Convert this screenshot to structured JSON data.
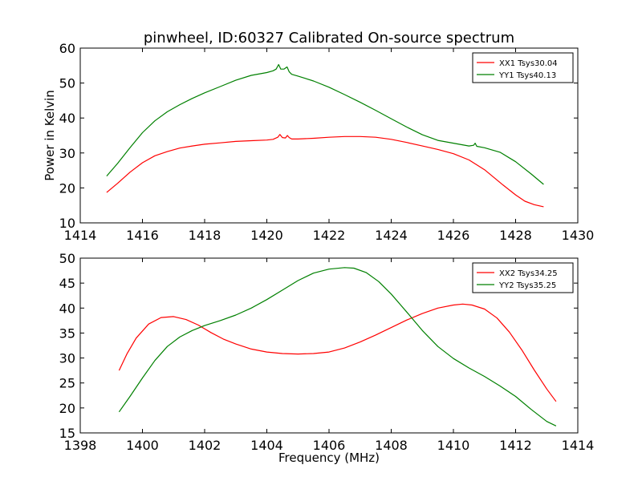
{
  "title": "pinwheel, ID:60327 Calibrated On-source spectrum",
  "colors": {
    "red": "#ff0000",
    "green": "#008000",
    "axes": "#000000",
    "background": "#ffffff"
  },
  "chart_data": [
    {
      "type": "line",
      "title": "pinwheel, ID:60327 Calibrated On-source spectrum",
      "xlabel": "",
      "ylabel": "Power in Kelvin",
      "xlim": [
        1414,
        1430
      ],
      "ylim": [
        10,
        60
      ],
      "xticks": [
        1414,
        1416,
        1418,
        1420,
        1422,
        1424,
        1426,
        1428,
        1430
      ],
      "yticks": [
        10,
        20,
        30,
        40,
        50,
        60
      ],
      "xtick_labels": [
        "1414",
        "1416",
        "1418",
        "1420",
        "1422",
        "1424",
        "1426",
        "1428",
        "1430"
      ],
      "ytick_labels": [
        "10",
        "20",
        "30",
        "40",
        "50",
        "60"
      ],
      "grid": false,
      "legend_position": "top-right",
      "series": [
        {
          "name": "XX1 Tsys30.04",
          "color": "#ff0000",
          "x": [
            1414.85,
            1415.2,
            1415.6,
            1416.0,
            1416.4,
            1416.8,
            1417.2,
            1417.6,
            1418.0,
            1418.5,
            1419.0,
            1419.5,
            1420.0,
            1420.2,
            1420.35,
            1420.42,
            1420.5,
            1420.6,
            1420.66,
            1420.72,
            1420.8,
            1421.0,
            1421.5,
            1422.0,
            1422.5,
            1423.0,
            1423.5,
            1424.0,
            1424.5,
            1425.0,
            1425.5,
            1426.0,
            1426.5,
            1427.0,
            1427.3,
            1427.6,
            1428.0,
            1428.3,
            1428.6,
            1428.9
          ],
          "y": [
            18.7,
            21.3,
            24.5,
            27.2,
            29.2,
            30.4,
            31.4,
            32.0,
            32.5,
            32.9,
            33.3,
            33.5,
            33.7,
            33.9,
            34.5,
            35.3,
            34.4,
            34.3,
            35.0,
            34.4,
            34.0,
            34.0,
            34.2,
            34.5,
            34.7,
            34.7,
            34.5,
            33.9,
            33.0,
            32.0,
            31.0,
            29.8,
            28.0,
            25.2,
            23.0,
            20.8,
            18.0,
            16.2,
            15.2,
            14.6
          ]
        },
        {
          "name": "YY1 Tsys40.13",
          "color": "#008000",
          "x": [
            1414.85,
            1415.2,
            1415.6,
            1416.0,
            1416.4,
            1416.8,
            1417.2,
            1417.6,
            1418.0,
            1418.5,
            1419.0,
            1419.5,
            1420.0,
            1420.2,
            1420.3,
            1420.38,
            1420.45,
            1420.55,
            1420.65,
            1420.72,
            1420.8,
            1421.0,
            1421.5,
            1422.0,
            1422.5,
            1423.0,
            1423.5,
            1424.0,
            1424.5,
            1425.0,
            1425.5,
            1426.0,
            1426.5,
            1426.65,
            1426.7,
            1426.75,
            1427.0,
            1427.5,
            1428.0,
            1428.5,
            1428.9
          ],
          "y": [
            23.4,
            27.0,
            31.5,
            35.8,
            39.2,
            41.8,
            43.8,
            45.6,
            47.2,
            49.0,
            50.8,
            52.2,
            53.0,
            53.5,
            54.0,
            55.3,
            54.0,
            54.0,
            54.6,
            53.2,
            52.5,
            52.0,
            50.6,
            48.8,
            46.7,
            44.5,
            42.2,
            39.8,
            37.4,
            35.2,
            33.6,
            32.8,
            32.0,
            32.2,
            32.8,
            31.9,
            31.5,
            30.2,
            27.5,
            24.0,
            21.0
          ]
        }
      ]
    },
    {
      "type": "line",
      "title": "",
      "xlabel": "Frequency (MHz)",
      "ylabel": "",
      "xlim": [
        1398,
        1414
      ],
      "ylim": [
        15,
        50
      ],
      "xticks": [
        1398,
        1400,
        1402,
        1404,
        1406,
        1408,
        1410,
        1412,
        1414
      ],
      "yticks": [
        15,
        20,
        25,
        30,
        35,
        40,
        45,
        50
      ],
      "xtick_labels": [
        "1398",
        "1400",
        "1402",
        "1404",
        "1406",
        "1408",
        "1410",
        "1412",
        "1414"
      ],
      "ytick_labels": [
        "15",
        "20",
        "25",
        "30",
        "35",
        "40",
        "45",
        "50"
      ],
      "grid": false,
      "legend_position": "top-right",
      "series": [
        {
          "name": "XX2 Tsys34.25",
          "color": "#ff0000",
          "x": [
            1399.25,
            1399.5,
            1399.8,
            1400.2,
            1400.6,
            1401.0,
            1401.4,
            1401.8,
            1402.2,
            1402.6,
            1403.0,
            1403.5,
            1404.0,
            1404.5,
            1405.0,
            1405.5,
            1406.0,
            1406.5,
            1407.0,
            1407.5,
            1408.0,
            1408.5,
            1409.0,
            1409.5,
            1410.0,
            1410.3,
            1410.6,
            1411.0,
            1411.4,
            1411.8,
            1412.2,
            1412.6,
            1413.0,
            1413.3
          ],
          "y": [
            27.5,
            30.8,
            34.0,
            36.8,
            38.1,
            38.3,
            37.7,
            36.6,
            35.1,
            33.8,
            32.8,
            31.8,
            31.2,
            30.9,
            30.8,
            30.9,
            31.2,
            32.0,
            33.2,
            34.6,
            36.1,
            37.6,
            38.9,
            40.0,
            40.6,
            40.8,
            40.6,
            39.8,
            38.0,
            35.2,
            31.6,
            27.6,
            23.8,
            21.3
          ]
        },
        {
          "name": "YY2 Tsys35.25",
          "color": "#008000",
          "x": [
            1399.25,
            1399.6,
            1400.0,
            1400.4,
            1400.8,
            1401.2,
            1401.6,
            1402.0,
            1402.5,
            1403.0,
            1403.5,
            1404.0,
            1404.5,
            1405.0,
            1405.5,
            1406.0,
            1406.5,
            1406.8,
            1407.2,
            1407.6,
            1408.0,
            1408.5,
            1409.0,
            1409.5,
            1410.0,
            1410.5,
            1411.0,
            1411.5,
            1412.0,
            1412.5,
            1413.0,
            1413.3
          ],
          "y": [
            19.2,
            22.3,
            26.0,
            29.5,
            32.3,
            34.2,
            35.5,
            36.5,
            37.5,
            38.6,
            40.0,
            41.7,
            43.6,
            45.5,
            47.0,
            47.8,
            48.1,
            48.0,
            47.1,
            45.3,
            42.8,
            39.2,
            35.5,
            32.3,
            29.9,
            28.0,
            26.3,
            24.4,
            22.3,
            19.7,
            17.3,
            16.4
          ]
        }
      ]
    }
  ]
}
